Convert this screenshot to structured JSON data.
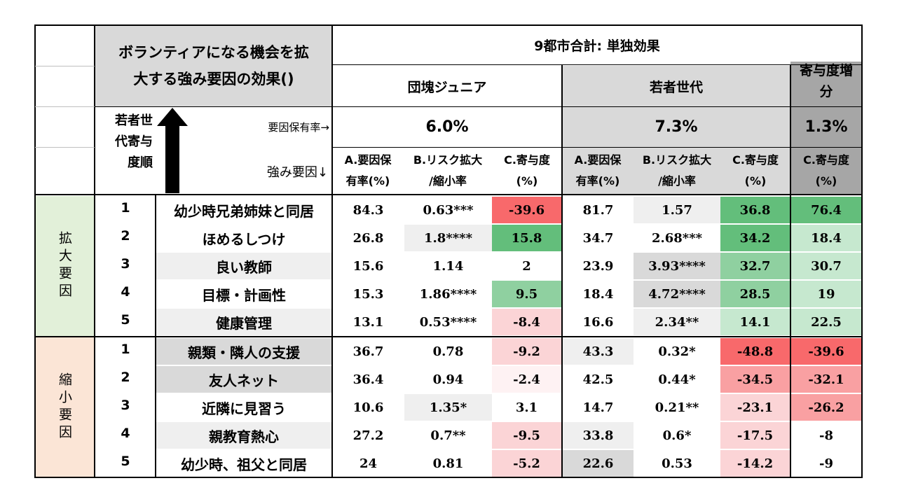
{
  "title_line1": "ボランティアになる機会を拡",
  "title_line2": "大する強み要因の効果()",
  "region_header": "9都市合計: 単独効果",
  "group1": "団塊ジュニア",
  "group2": "若者世代",
  "group3_line1": "寄与度増",
  "group3_line2": "分",
  "rank_header": [
    "若者世",
    "代寄与",
    "度順"
  ],
  "factor_rate_label": "要因保有率→",
  "strength_label": "強み要因↓",
  "rate1": "6.0%",
  "rate2": "7.3%",
  "rate3": "1.3%",
  "col_a_1": "A.要因保",
  "col_a_2": "有率(%)",
  "col_b_1": "B.リスク拡大",
  "col_b_2": "/縮小率",
  "col_c_1": "C.寄与度",
  "col_c_2": "(%)",
  "section_expand": "拡大要因",
  "section_shrink": "縮小要因",
  "colors": {
    "green_strong": "#63be7b",
    "green_mid": "#8fd0a0",
    "green_light": "#c6e8cf",
    "red_strong": "#f8696b",
    "red_mid": "#f9a0a2",
    "red_light": "#fbd4d6",
    "grey": "#d9d9d9",
    "light_grey": "#efefef",
    "section_green": "#e2f0d9",
    "section_peach": "#fbe5d6"
  },
  "rows": [
    {
      "rank": "1",
      "factor": "幼少時兄弟姉妹と同居",
      "a1": "84.3",
      "b1": "0.63***",
      "c1": "-39.6",
      "a2": "81.7",
      "b2": "1.57",
      "c2": "36.8",
      "c3": "76.4"
    },
    {
      "rank": "2",
      "factor": "ほめるしつけ",
      "a1": "26.8",
      "b1": "1.8****",
      "c1": "15.8",
      "a2": "34.7",
      "b2": "2.68***",
      "c2": "34.2",
      "c3": "18.4"
    },
    {
      "rank": "3",
      "factor": "良い教師",
      "a1": "15.6",
      "b1": "1.14",
      "c1": "2",
      "a2": "23.9",
      "b2": "3.93****",
      "c2": "32.7",
      "c3": "30.7"
    },
    {
      "rank": "4",
      "factor": "目標・計画性",
      "a1": "15.3",
      "b1": "1.86****",
      "c1": "9.5",
      "a2": "18.4",
      "b2": "4.72****",
      "c2": "28.5",
      "c3": "19"
    },
    {
      "rank": "5",
      "factor": "健康管理",
      "a1": "13.1",
      "b1": "0.53****",
      "c1": "-8.4",
      "a2": "16.6",
      "b2": "2.34**",
      "c2": "14.1",
      "c3": "22.5"
    },
    {
      "rank": "1",
      "factor": "親類・隣人の支援",
      "a1": "36.7",
      "b1": "0.78",
      "c1": "-9.2",
      "a2": "43.3",
      "b2": "0.32*",
      "c2": "-48.8",
      "c3": "-39.6"
    },
    {
      "rank": "2",
      "factor": "友人ネット",
      "a1": "36.4",
      "b1": "0.94",
      "c1": "-2.4",
      "a2": "42.5",
      "b2": "0.44*",
      "c2": "-34.5",
      "c3": "-32.1"
    },
    {
      "rank": "3",
      "factor": "近隣に見習う",
      "a1": "10.6",
      "b1": "1.35*",
      "c1": "3.1",
      "a2": "14.7",
      "b2": "0.21**",
      "c2": "-23.1",
      "c3": "-26.2"
    },
    {
      "rank": "4",
      "factor": "親教育熱心",
      "a1": "27.2",
      "b1": "0.7**",
      "c1": "-9.5",
      "a2": "33.8",
      "b2": "0.6*",
      "c2": "-17.5",
      "c3": "-8"
    },
    {
      "rank": "5",
      "factor": "幼少時、祖父と同居",
      "a1": "24",
      "b1": "0.81",
      "c1": "-5.2",
      "a2": "22.6",
      "b2": "0.53",
      "c2": "-14.2",
      "c3": "-9"
    }
  ]
}
